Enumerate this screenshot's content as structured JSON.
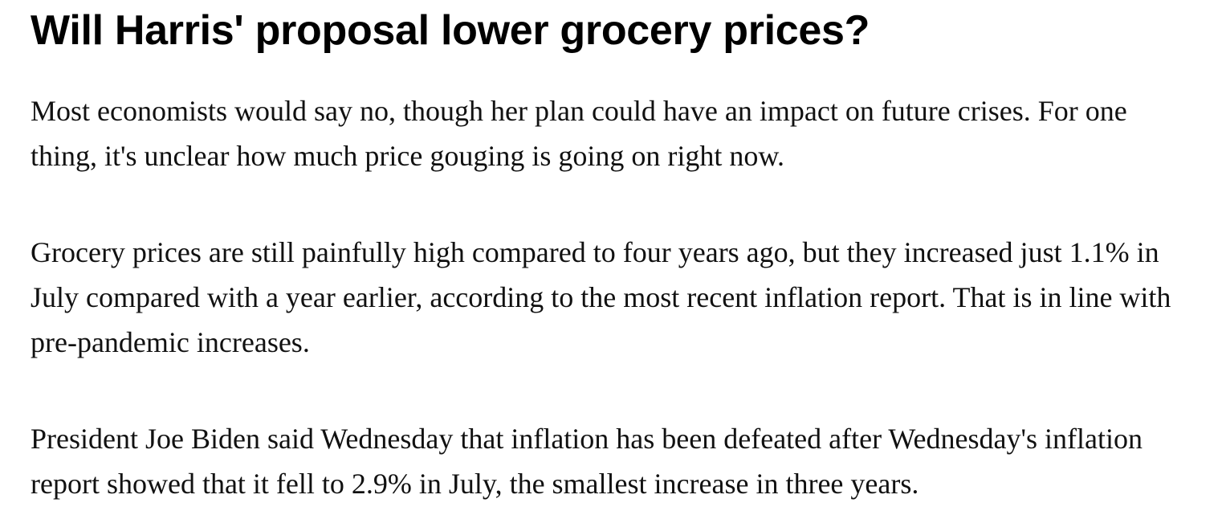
{
  "article": {
    "headline": "Will Harris' proposal lower grocery prices?",
    "paragraphs": [
      "Most economists would say no, though her plan could have an impact on future crises. For one thing, it's unclear how much price gouging is going on right now.",
      "Grocery prices are still painfully high compared to four years ago, but they increased just 1.1% in July compared with a year earlier, according to the most recent inflation report. That is in line with pre-pandemic increases.",
      "President Joe Biden said Wednesday that inflation has been defeated after Wednesday's inflation report showed that it fell to 2.9% in July, the smallest increase in three years."
    ]
  }
}
